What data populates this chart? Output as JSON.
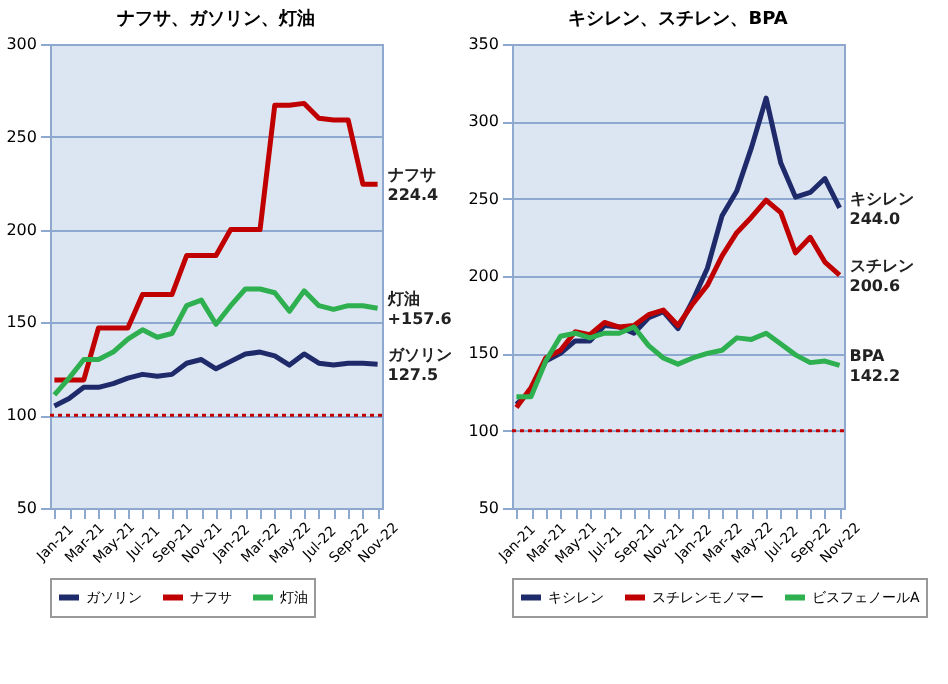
{
  "chart_data": [
    {
      "type": "line",
      "title": "ナフサ、ガソリン、灯油",
      "categories": [
        "Jan-21",
        null,
        "Mar-21",
        null,
        "May-21",
        null,
        "Jul-21",
        null,
        "Sep-21",
        null,
        "Nov-21",
        null,
        "Jan-22",
        null,
        "Mar-22",
        null,
        "May-22",
        null,
        "Jul-22",
        null,
        "Sep-22",
        null,
        "Nov-22"
      ],
      "series": [
        {
          "name": "ガソリン",
          "color": "#1f2a6b",
          "values": [
            105,
            109,
            115,
            115,
            117,
            120,
            122,
            121,
            122,
            128,
            130,
            125,
            129,
            133,
            134,
            132,
            127,
            133,
            128,
            127,
            128,
            128,
            127.5
          ]
        },
        {
          "name": "ナフサ",
          "color": "#c00000",
          "values": [
            119,
            119,
            119,
            147,
            147,
            147,
            165,
            165,
            165,
            186,
            186,
            186,
            200,
            200,
            200,
            267,
            267,
            268,
            260,
            259,
            259,
            224.4,
            224.4
          ]
        },
        {
          "name": "灯油",
          "color": "#2eb050",
          "values": [
            111,
            120,
            130,
            130,
            134,
            141,
            146,
            142,
            144,
            159,
            162,
            149,
            159,
            168,
            168,
            166,
            156,
            167,
            159,
            157,
            159,
            159,
            157.6
          ]
        }
      ],
      "ylim": [
        50,
        300
      ],
      "yticks": [
        50,
        100,
        150,
        200,
        250,
        300
      ],
      "grid": "y",
      "legend": "bottom",
      "ref_lines": [
        {
          "axis": "y",
          "value": 100,
          "color": "#c00000",
          "line_style": "dotted"
        }
      ],
      "annotations": [
        {
          "text": "ナフサ\n224.4",
          "x": "Nov-22",
          "y": 224.4
        },
        {
          "text": "灯油\n+157.6",
          "x": "Nov-22",
          "y": 157.6
        },
        {
          "text": "ガソリン\n127.5",
          "x": "Nov-22",
          "y": 127.5
        }
      ]
    },
    {
      "type": "line",
      "title": "キシレン、スチレン、BPA",
      "categories": [
        "Jan-21",
        null,
        "Mar-21",
        null,
        "May-21",
        null,
        "Jul-21",
        null,
        "Sep-21",
        null,
        "Nov-21",
        null,
        "Jan-22",
        null,
        "Mar-22",
        null,
        "May-22",
        null,
        "Jul-22",
        null,
        "Sep-22",
        null,
        "Nov-22"
      ],
      "series": [
        {
          "name": "キシレン",
          "color": "#1f2a6b",
          "values": [
            117,
            126,
            145,
            150,
            158,
            158,
            168,
            167,
            163,
            173,
            177,
            166,
            184,
            205,
            239,
            255,
            283,
            315,
            273,
            251,
            254,
            263,
            244.0
          ]
        },
        {
          "name": "スチレンモノマー",
          "color": "#c00000",
          "values": [
            115,
            128,
            147,
            152,
            164,
            162,
            170,
            167,
            168,
            175,
            178,
            168,
            182,
            194,
            213,
            228,
            238,
            249,
            241,
            215,
            225,
            209,
            200.6
          ]
        },
        {
          "name": "ビスフェノールA",
          "color": "#2eb050",
          "values": [
            122,
            122,
            145,
            161,
            163,
            160,
            163,
            163,
            167,
            155,
            147,
            143,
            147,
            150,
            152,
            160,
            159,
            163,
            156,
            149,
            144,
            145,
            142.2
          ]
        }
      ],
      "ylim": [
        50,
        350
      ],
      "yticks": [
        50,
        100,
        150,
        200,
        250,
        300,
        350
      ],
      "grid": "y",
      "legend": "bottom",
      "ref_lines": [
        {
          "axis": "y",
          "value": 100,
          "color": "#c00000",
          "line_style": "dotted"
        }
      ],
      "annotations": [
        {
          "text": "キシレン\n244.0",
          "x": "Nov-22",
          "y": 244.0
        },
        {
          "text": "スチレン\n200.6",
          "x": "Nov-22",
          "y": 200.6
        },
        {
          "text": "BPA\n142.2",
          "x": "Nov-22",
          "y": 142.2
        }
      ]
    }
  ]
}
